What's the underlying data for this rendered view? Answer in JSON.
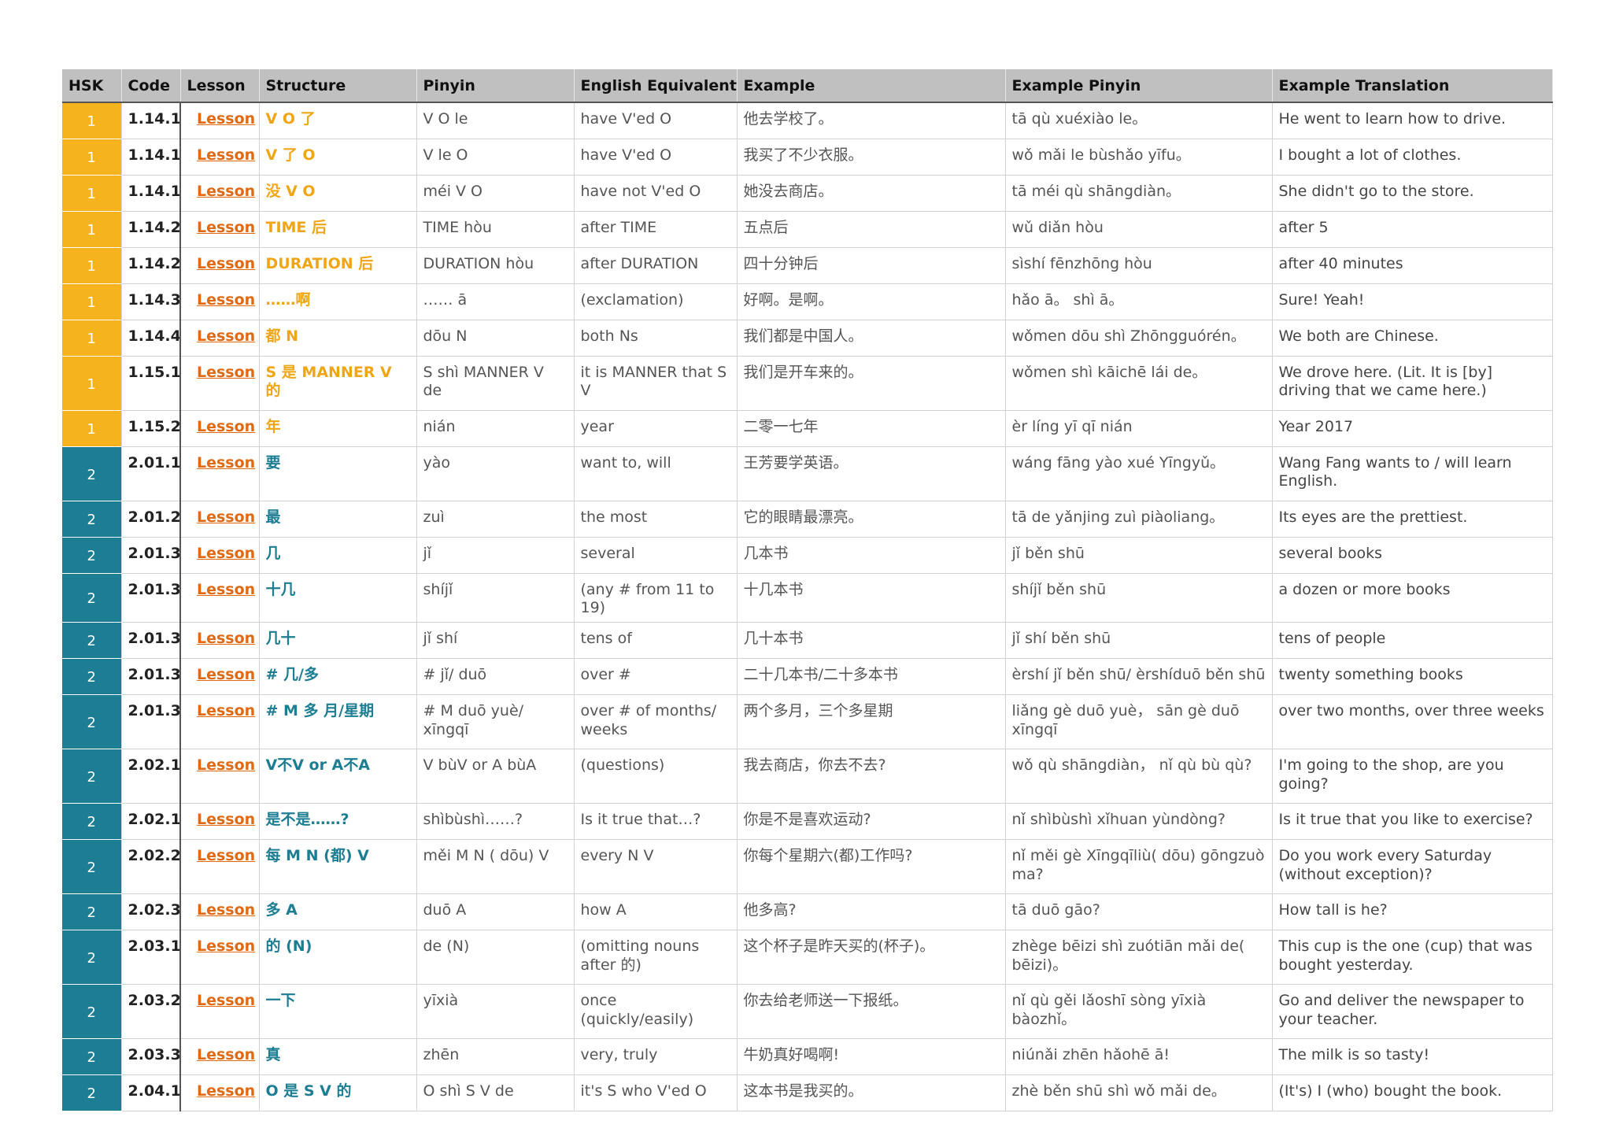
{
  "headers": [
    "HSK",
    "Code",
    "Lesson",
    "Structure",
    "Pinyin",
    "English Equivalent",
    "Example",
    "Example Pinyin",
    "Example Translation"
  ],
  "colors": {
    "hsk1": "#f5b41d",
    "hsk2": "#1d7d93",
    "lesson_link": "#e06a14",
    "header_bg": "#c0c0c0"
  },
  "rows": [
    {
      "hsk": "1",
      "code": "1.14.1",
      "lesson": "Lesson",
      "structure": "V O 了",
      "pinyin": "V O le",
      "english": "have V'ed O",
      "example": "他去学校了。",
      "example_pinyin": "tā qù xuéxiào le。",
      "translation": "He went to learn how to drive."
    },
    {
      "hsk": "1",
      "code": "1.14.1",
      "lesson": "Lesson",
      "structure": "V 了 O",
      "pinyin": "V le O",
      "english": "have V'ed O",
      "example": "我买了不少衣服。",
      "example_pinyin": "wǒ mǎi le bùshǎo yīfu。",
      "translation": "I bought a lot of clothes."
    },
    {
      "hsk": "1",
      "code": "1.14.1",
      "lesson": "Lesson",
      "structure": "没 V O",
      "pinyin": "méi V O",
      "english": "have not V'ed O",
      "example": "她没去商店。",
      "example_pinyin": "tā méi qù shāngdiàn。",
      "translation": "She didn't go to the store."
    },
    {
      "hsk": "1",
      "code": "1.14.2",
      "lesson": "Lesson",
      "structure": "TIME 后",
      "pinyin": "TIME hòu",
      "english": "after TIME",
      "example": "五点后",
      "example_pinyin": "wǔ diǎn hòu",
      "translation": "after 5"
    },
    {
      "hsk": "1",
      "code": "1.14.2",
      "lesson": "Lesson",
      "structure": "DURATION 后",
      "pinyin": "DURATION hòu",
      "english": "after DURATION",
      "example": "四十分钟后",
      "example_pinyin": "sìshí fēnzhōng hòu",
      "translation": "after 40 minutes"
    },
    {
      "hsk": "1",
      "code": "1.14.3",
      "lesson": "Lesson",
      "structure": "……啊",
      "pinyin": "…… ā",
      "english": "(exclamation)",
      "example": "好啊。是啊。",
      "example_pinyin": "hǎo ā。 shì ā。",
      "translation": "Sure! Yeah!"
    },
    {
      "hsk": "1",
      "code": "1.14.4",
      "lesson": "Lesson",
      "structure": "都 N",
      "pinyin": "dōu N",
      "english": "both Ns",
      "example": "我们都是中国人。",
      "example_pinyin": "wǒmen dōu shì Zhōngguórén。",
      "translation": "We both are Chinese."
    },
    {
      "hsk": "1",
      "code": "1.15.1",
      "lesson": "Lesson",
      "structure": "S 是 MANNER V 的",
      "pinyin": "S shì MANNER V de",
      "english": "it is MANNER that S V",
      "example": "我们是开车来的。",
      "example_pinyin": "wǒmen shì kāichē lái de。",
      "translation": "We drove here. (Lit. It is [by] driving that we came here.)"
    },
    {
      "hsk": "1",
      "code": "1.15.2",
      "lesson": "Lesson",
      "structure": "年",
      "pinyin": "nián",
      "english": "year",
      "example": "二零一七年",
      "example_pinyin": "èr líng yī qī nián",
      "translation": "Year 2017"
    },
    {
      "hsk": "2",
      "code": "2.01.1",
      "lesson": "Lesson",
      "structure": "要",
      "pinyin": "yào",
      "english": "want to, will",
      "example": "王芳要学英语。",
      "example_pinyin": "wáng fāng yào xué Yīngyǔ。",
      "translation": "Wang Fang wants to / will learn English."
    },
    {
      "hsk": "2",
      "code": "2.01.2",
      "lesson": "Lesson",
      "structure": "最",
      "pinyin": "zuì",
      "english": "the most",
      "example": "它的眼睛最漂亮。",
      "example_pinyin": "tā de yǎnjing zuì piàoliang。",
      "translation": "Its eyes are the prettiest."
    },
    {
      "hsk": "2",
      "code": "2.01.3",
      "lesson": "Lesson",
      "structure": "几",
      "pinyin": "jǐ",
      "english": "several",
      "example": "几本书",
      "example_pinyin": "jǐ běn shū",
      "translation": "several books"
    },
    {
      "hsk": "2",
      "code": "2.01.3",
      "lesson": "Lesson",
      "structure": "十几",
      "pinyin": "shíjǐ",
      "english": "(any # from 11 to 19)",
      "example": "十几本书",
      "example_pinyin": "shíjǐ běn shū",
      "translation": "a dozen or more books"
    },
    {
      "hsk": "2",
      "code": "2.01.3",
      "lesson": "Lesson",
      "structure": "几十",
      "pinyin": "jǐ shí",
      "english": "tens of",
      "example": "几十本书",
      "example_pinyin": "jǐ shí běn shū",
      "translation": "tens of people"
    },
    {
      "hsk": "2",
      "code": "2.01.3",
      "lesson": "Lesson",
      "structure": "# 几/多",
      "pinyin": "# jǐ/ duō",
      "english": "over #",
      "example": "二十几本书/二十多本书",
      "example_pinyin": "èrshí jǐ běn shū/ èrshíduō běn shū",
      "translation": "twenty something books"
    },
    {
      "hsk": "2",
      "code": "2.01.3",
      "lesson": "Lesson",
      "structure": "# M 多 月/星期",
      "pinyin": "# M duō yuè/ xīngqī",
      "english": "over # of months/ weeks",
      "example": "两个多月，三个多星期",
      "example_pinyin": "liǎng gè duō yuè， sān gè duō xīngqī",
      "translation": "over two months, over three weeks"
    },
    {
      "hsk": "2",
      "code": "2.02.1",
      "lesson": "Lesson",
      "structure": "V不V or A不A",
      "pinyin": "V bùV or A bùA",
      "english": "(questions)",
      "example": "我去商店，你去不去?",
      "example_pinyin": "wǒ qù shāngdiàn， nǐ qù bù qù?",
      "translation": "I'm going to the shop, are you going?"
    },
    {
      "hsk": "2",
      "code": "2.02.1",
      "lesson": "Lesson",
      "structure": "是不是……?",
      "pinyin": "shìbùshì……?",
      "english": "Is it true that…?",
      "example": "你是不是喜欢运动?",
      "example_pinyin": "nǐ shìbùshì xǐhuan yùndòng?",
      "translation": "Is it true that you like to exercise?"
    },
    {
      "hsk": "2",
      "code": "2.02.2",
      "lesson": "Lesson",
      "structure": "每 M N (都) V",
      "pinyin": "měi M N ( dōu) V",
      "english": "every N V",
      "example": "你每个星期六(都)工作吗?",
      "example_pinyin": "nǐ měi gè Xīngqīliù( dōu) gōngzuò ma?",
      "translation": "Do you work every Saturday (without exception)?"
    },
    {
      "hsk": "2",
      "code": "2.02.3",
      "lesson": "Lesson",
      "structure": "多 A",
      "pinyin": "duō A",
      "english": "how A",
      "example": "他多高?",
      "example_pinyin": "tā duō gāo?",
      "translation": "How tall is he?"
    },
    {
      "hsk": "2",
      "code": "2.03.1",
      "lesson": "Lesson",
      "structure": "的 (N)",
      "pinyin": "de (N)",
      "english": "(omitting nouns after 的)",
      "example": "这个杯子是昨天买的(杯子)。",
      "example_pinyin": "zhège bēizi shì zuótiān mǎi de( bēizi)。",
      "translation": "This cup is the one (cup) that was bought yesterday."
    },
    {
      "hsk": "2",
      "code": "2.03.2",
      "lesson": "Lesson",
      "structure": "一下",
      "pinyin": "yīxià",
      "english": "once (quickly/easily)",
      "example": "你去给老师送一下报纸。",
      "example_pinyin": "nǐ qù gěi lǎoshī sòng yīxià bàozhǐ。",
      "translation": "Go and deliver the newspaper to your teacher."
    },
    {
      "hsk": "2",
      "code": "2.03.3",
      "lesson": "Lesson",
      "structure": "真",
      "pinyin": "zhēn",
      "english": "very, truly",
      "example": "牛奶真好喝啊!",
      "example_pinyin": "niúnǎi zhēn hǎohē ā!",
      "translation": "The milk is so tasty!"
    },
    {
      "hsk": "2",
      "code": "2.04.1",
      "lesson": "Lesson",
      "structure": "O 是 S V 的",
      "pinyin": "O shì S V de",
      "english": "it's S who V'ed O",
      "example": "这本书是我买的。",
      "example_pinyin": "zhè běn shū shì wǒ mǎi de。",
      "translation": "(It's) I (who) bought the book."
    }
  ]
}
